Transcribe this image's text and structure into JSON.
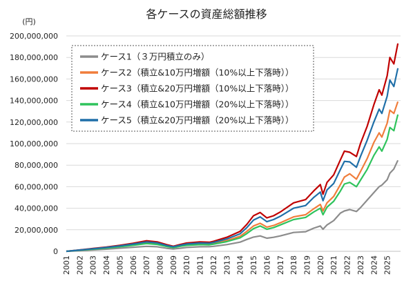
{
  "chart_data": {
    "type": "line",
    "title": "各ケースの資産総額推移",
    "ylabel": "(円)",
    "xlabel": "",
    "ylim": [
      0,
      200000000
    ],
    "y_ticks": [
      "0",
      "20,000,000",
      "40,000,000",
      "60,000,000",
      "80,000,000",
      "100,000,000",
      "120,000,000",
      "140,000,000",
      "160,000,000",
      "180,000,000",
      "200,000,000"
    ],
    "x_ticks": [
      "2001",
      "2002",
      "2003",
      "2004",
      "2005",
      "2006",
      "2007",
      "2008",
      "2009",
      "2010",
      "2011",
      "2012",
      "2013",
      "2014",
      "2015",
      "2016",
      "2017",
      "2018",
      "2019",
      "2020",
      "2021",
      "2022",
      "2023",
      "2024",
      "2025"
    ],
    "grid": true,
    "legend_position": "top-left",
    "x": [
      2001.0,
      2002.0,
      2003.0,
      2004.0,
      2005.0,
      2006.0,
      2007.0,
      2007.8,
      2008.5,
      2009.0,
      2009.5,
      2010.0,
      2011.0,
      2011.7,
      2012.0,
      2013.0,
      2014.0,
      2014.5,
      2015.0,
      2015.5,
      2016.0,
      2016.5,
      2017.0,
      2018.0,
      2018.9,
      2019.5,
      2020.0,
      2020.2,
      2020.5,
      2021.0,
      2021.5,
      2021.8,
      2022.2,
      2022.7,
      2023.0,
      2023.5,
      2024.0,
      2024.4,
      2024.6,
      2025.0,
      2025.2,
      2025.5,
      2025.8
    ],
    "series": [
      {
        "name": "ケース1（３万円積立のみ）",
        "color": "#8c8c8c",
        "values": [
          0.0,
          0.6,
          1.3,
          2.0,
          2.9,
          3.8,
          4.6,
          4.2,
          2.8,
          2.2,
          2.8,
          3.6,
          4.2,
          4.3,
          4.6,
          6.2,
          8.5,
          11.0,
          13.2,
          14.3,
          12.2,
          13.0,
          14.3,
          17.5,
          18.2,
          21.5,
          23.5,
          20.5,
          24.5,
          28.5,
          35.5,
          37.5,
          38.8,
          37.0,
          40.5,
          47.5,
          54.5,
          60.0,
          61.5,
          66.5,
          72.5,
          76.5,
          84.5
        ]
      },
      {
        "name": "ケース2（積立&10万円増額（10%以上下落時））",
        "color": "#f07d3b",
        "values": [
          0.0,
          1.1,
          2.2,
          3.3,
          4.5,
          6.0,
          7.8,
          7.0,
          4.8,
          3.7,
          5.0,
          6.0,
          6.8,
          6.6,
          7.2,
          10.0,
          14.0,
          18.5,
          23.5,
          26.0,
          22.5,
          24.0,
          26.5,
          32.0,
          34.0,
          39.5,
          43.5,
          37.5,
          45.0,
          51.0,
          62.0,
          69.0,
          72.0,
          67.0,
          74.0,
          86.0,
          101.0,
          110.0,
          106.0,
          119.0,
          131.0,
          128.0,
          139.0
        ]
      },
      {
        "name": "ケース3（積立&20万円増額（10%以上下落時））",
        "color": "#c00000",
        "values": [
          0.0,
          1.3,
          2.7,
          4.0,
          5.6,
          7.5,
          9.8,
          8.8,
          6.2,
          4.7,
          6.3,
          7.7,
          8.7,
          8.4,
          9.2,
          13.0,
          18.5,
          25.0,
          33.0,
          36.0,
          31.0,
          33.0,
          36.5,
          45.0,
          48.0,
          56.0,
          62.0,
          53.0,
          64.0,
          71.0,
          85.0,
          93.0,
          92.0,
          88.0,
          100.0,
          116.0,
          136.0,
          150.0,
          145.0,
          163.0,
          180.0,
          174.0,
          193.0
        ]
      },
      {
        "name": "ケース4（積立&10万円増額（20%以上下落時））",
        "color": "#2fc35c",
        "values": [
          0.0,
          1.0,
          2.0,
          3.0,
          4.2,
          5.6,
          7.2,
          6.4,
          4.4,
          3.4,
          4.6,
          5.5,
          6.2,
          6.0,
          6.6,
          9.0,
          12.5,
          16.5,
          21.0,
          23.5,
          20.5,
          22.0,
          24.5,
          29.5,
          31.5,
          36.5,
          40.0,
          34.0,
          41.0,
          46.5,
          56.0,
          62.5,
          64.0,
          60.0,
          66.0,
          76.0,
          89.0,
          97.0,
          93.0,
          104.0,
          115.0,
          112.0,
          127.0
        ]
      },
      {
        "name": "ケース5（積立&20万円増額（20%以上下落時））",
        "color": "#1f6fa8",
        "values": [
          0.0,
          1.2,
          2.4,
          3.6,
          5.0,
          6.7,
          8.7,
          7.8,
          5.4,
          4.2,
          5.6,
          6.8,
          7.7,
          7.5,
          8.2,
          11.5,
          16.3,
          22.0,
          29.0,
          32.0,
          27.5,
          29.5,
          32.5,
          40.0,
          42.5,
          50.0,
          55.0,
          47.0,
          57.0,
          63.0,
          76.0,
          83.5,
          83.0,
          78.0,
          88.0,
          103.0,
          120.0,
          132.0,
          128.0,
          144.0,
          159.0,
          153.0,
          170.0
        ]
      }
    ],
    "value_unit_note": "values in millions of yen"
  }
}
